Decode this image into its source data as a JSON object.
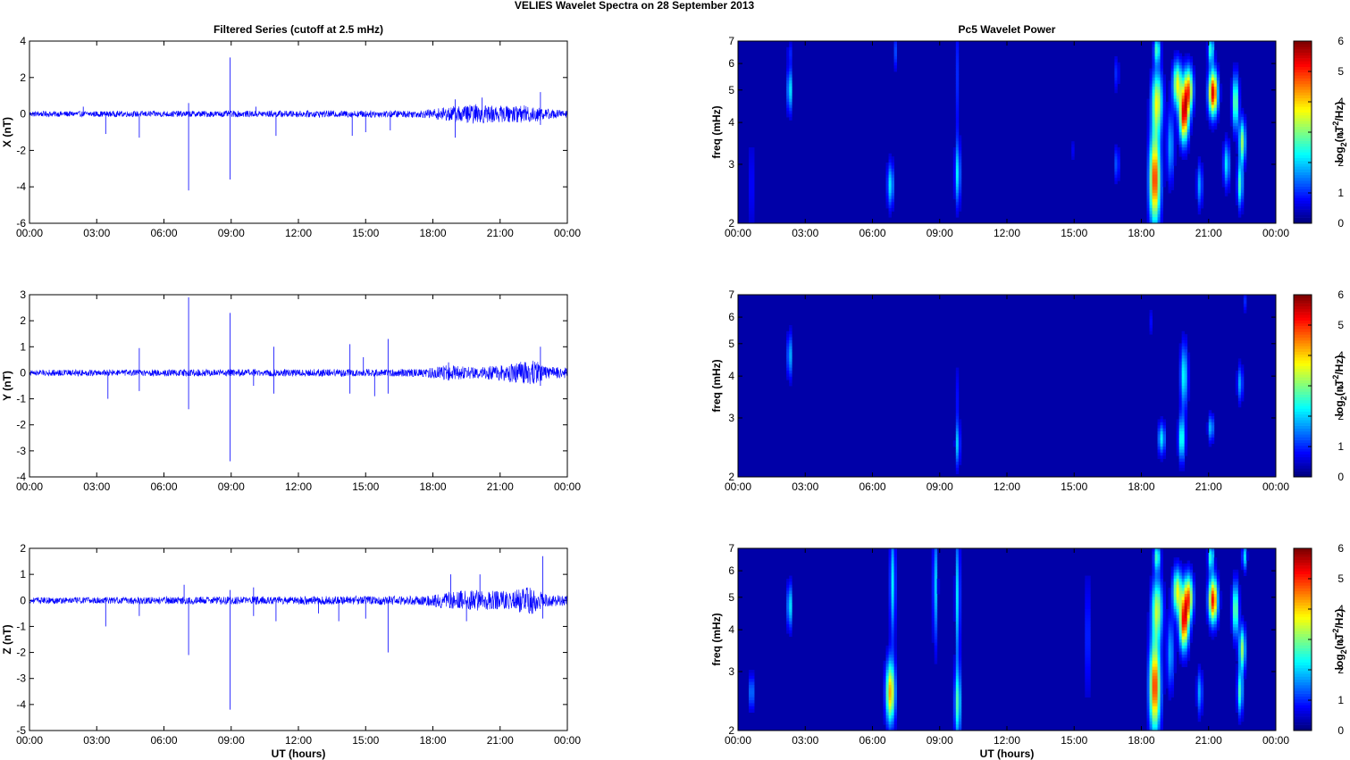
{
  "title": "VELIES Wavelet Spectra on 28 September 2013",
  "left_column_title": "Filtered Series (cutoff at 2.5 mHz)",
  "right_column_title": "Pc5 Wavelet Power",
  "x_tick_labels": [
    "00:00",
    "03:00",
    "06:00",
    "09:00",
    "12:00",
    "15:00",
    "18:00",
    "21:00",
    "00:00"
  ],
  "x_axis_label": "UT (hours)",
  "colors": {
    "series": "#0000ff",
    "axes": "#000000",
    "background": "#00008f"
  },
  "colorbar": {
    "label_base": "log",
    "label_sub": "2",
    "label_mid": "(nT",
    "label_sup": "2",
    "label_end": "/Hz)",
    "ticks": [
      0,
      1,
      2,
      3,
      4,
      5,
      6
    ],
    "colormap": "jet"
  },
  "chart_data": [
    {
      "type": "line",
      "title": "Filtered Series (cutoff at 2.5 mHz)",
      "ylabel": "X (nT)",
      "xlabel": "",
      "xlim": [
        0,
        24
      ],
      "ylim": [
        -6,
        4
      ],
      "yticks": [
        -6,
        -4,
        -2,
        0,
        2,
        4
      ],
      "noise": [
        [
          0,
          0.15
        ],
        [
          17.5,
          0.2
        ],
        [
          19,
          0.45
        ],
        [
          20,
          0.55
        ],
        [
          21,
          0.45
        ],
        [
          22.5,
          0.5
        ],
        [
          23,
          0.3
        ],
        [
          24,
          0.2
        ]
      ],
      "spikes": [
        [
          2.4,
          0.4
        ],
        [
          3.4,
          -1.1
        ],
        [
          4.9,
          -1.3
        ],
        [
          7.1,
          -4.2
        ],
        [
          7.1,
          0.6
        ],
        [
          8.95,
          3.1
        ],
        [
          8.95,
          -3.6
        ],
        [
          10.1,
          0.4
        ],
        [
          11.0,
          -1.2
        ],
        [
          14.4,
          -1.2
        ],
        [
          15.0,
          -1.0
        ],
        [
          16.1,
          -0.9
        ],
        [
          19.0,
          -1.3
        ],
        [
          19.0,
          0.8
        ],
        [
          20.2,
          0.9
        ],
        [
          22.8,
          1.2
        ],
        [
          22.8,
          -0.6
        ]
      ]
    },
    {
      "type": "line",
      "title": "",
      "ylabel": "Y (nT)",
      "xlabel": "",
      "xlim": [
        0,
        24
      ],
      "ylim": [
        -4,
        3
      ],
      "yticks": [
        -4,
        -3,
        -2,
        -1,
        0,
        1,
        2,
        3
      ],
      "noise": [
        [
          0,
          0.12
        ],
        [
          17.5,
          0.15
        ],
        [
          18.7,
          0.3
        ],
        [
          20,
          0.2
        ],
        [
          22.6,
          0.5
        ],
        [
          23,
          0.25
        ],
        [
          24,
          0.2
        ]
      ],
      "spikes": [
        [
          3.5,
          -1.0
        ],
        [
          4.9,
          0.95
        ],
        [
          4.9,
          -0.7
        ],
        [
          7.1,
          2.9
        ],
        [
          7.1,
          -1.4
        ],
        [
          8.95,
          2.3
        ],
        [
          8.95,
          -3.4
        ],
        [
          10.0,
          -0.5
        ],
        [
          10.9,
          1.0
        ],
        [
          10.9,
          -0.8
        ],
        [
          14.3,
          1.1
        ],
        [
          14.3,
          -0.8
        ],
        [
          14.9,
          0.6
        ],
        [
          15.4,
          -0.9
        ],
        [
          16.0,
          1.3
        ],
        [
          16.0,
          -0.8
        ],
        [
          18.7,
          0.4
        ],
        [
          22.8,
          1.0
        ],
        [
          22.8,
          -0.5
        ]
      ]
    },
    {
      "type": "line",
      "title": "",
      "ylabel": "Z (nT)",
      "xlabel": "UT (hours)",
      "xlim": [
        0,
        24
      ],
      "ylim": [
        -5,
        2
      ],
      "yticks": [
        -5,
        -4,
        -3,
        -2,
        -1,
        0,
        1,
        2
      ],
      "noise": [
        [
          0,
          0.12
        ],
        [
          17.5,
          0.18
        ],
        [
          18.7,
          0.35
        ],
        [
          20,
          0.4
        ],
        [
          21,
          0.35
        ],
        [
          22.6,
          0.55
        ],
        [
          23,
          0.25
        ],
        [
          24,
          0.2
        ]
      ],
      "spikes": [
        [
          3.4,
          -1.0
        ],
        [
          4.9,
          -0.6
        ],
        [
          6.9,
          0.6
        ],
        [
          7.1,
          -2.1
        ],
        [
          8.95,
          -4.2
        ],
        [
          8.95,
          0.4
        ],
        [
          10.0,
          0.5
        ],
        [
          10.0,
          -0.6
        ],
        [
          11.0,
          -0.8
        ],
        [
          12.9,
          -0.5
        ],
        [
          13.8,
          -0.8
        ],
        [
          15.0,
          -0.7
        ],
        [
          16.0,
          -2.0
        ],
        [
          18.8,
          1.0
        ],
        [
          19.5,
          -0.8
        ],
        [
          20.1,
          1.0
        ],
        [
          22.9,
          1.7
        ],
        [
          22.9,
          -0.7
        ]
      ]
    },
    {
      "type": "heatmap",
      "title": "Pc5 Wavelet Power",
      "ylabel": "freq (mHz)",
      "xlabel": "",
      "xlim": [
        0,
        24
      ],
      "ylim": [
        2,
        7
      ],
      "yscale": "log",
      "yticks": [
        2,
        3,
        4,
        5,
        6,
        7
      ],
      "clim": [
        0,
        6
      ],
      "blobs": [
        [
          0.6,
          2.6,
          0.05,
          0.22,
          0.7
        ],
        [
          2.3,
          5.0,
          0.05,
          0.1,
          2.2
        ],
        [
          2.3,
          6.5,
          0.04,
          0.05,
          0.8
        ],
        [
          6.8,
          2.6,
          0.07,
          0.1,
          2.0
        ],
        [
          7.0,
          6.5,
          0.04,
          0.08,
          1.0
        ],
        [
          9.8,
          2.8,
          0.06,
          0.14,
          2.0
        ],
        [
          9.8,
          5.5,
          0.04,
          0.3,
          0.8
        ],
        [
          14.9,
          3.3,
          0.04,
          0.05,
          0.6
        ],
        [
          16.9,
          3.0,
          0.05,
          0.08,
          1.2
        ],
        [
          16.9,
          5.6,
          0.04,
          0.08,
          1.0
        ],
        [
          18.6,
          2.7,
          0.12,
          0.2,
          5.0
        ],
        [
          18.7,
          4.6,
          0.12,
          0.14,
          3.5
        ],
        [
          18.7,
          6.6,
          0.07,
          0.06,
          2.5
        ],
        [
          19.3,
          3.4,
          0.08,
          0.16,
          1.6
        ],
        [
          19.6,
          5.2,
          0.1,
          0.1,
          3.5
        ],
        [
          19.9,
          4.2,
          0.1,
          0.12,
          5.2
        ],
        [
          20.1,
          5.0,
          0.1,
          0.1,
          4.2
        ],
        [
          20.6,
          2.6,
          0.06,
          0.1,
          1.6
        ],
        [
          21.2,
          4.9,
          0.1,
          0.1,
          5.5
        ],
        [
          21.1,
          6.6,
          0.06,
          0.06,
          2.5
        ],
        [
          21.8,
          3.0,
          0.07,
          0.1,
          2.0
        ],
        [
          22.2,
          4.6,
          0.07,
          0.12,
          3.0
        ],
        [
          22.4,
          2.6,
          0.06,
          0.1,
          2.5
        ],
        [
          22.5,
          3.5,
          0.07,
          0.1,
          3.0
        ]
      ]
    },
    {
      "type": "heatmap",
      "title": "",
      "ylabel": "freq (mHz)",
      "xlabel": "",
      "xlim": [
        0,
        24
      ],
      "ylim": [
        2,
        7
      ],
      "yscale": "log",
      "yticks": [
        2,
        3,
        4,
        5,
        6,
        7
      ],
      "clim": [
        0,
        6
      ],
      "blobs": [
        [
          2.3,
          4.6,
          0.05,
          0.1,
          1.8
        ],
        [
          9.8,
          2.5,
          0.05,
          0.1,
          1.8
        ],
        [
          9.8,
          3.5,
          0.04,
          0.14,
          0.6
        ],
        [
          18.9,
          2.6,
          0.08,
          0.07,
          2.0
        ],
        [
          18.4,
          5.8,
          0.04,
          0.06,
          0.6
        ],
        [
          19.8,
          2.6,
          0.07,
          0.1,
          2.5
        ],
        [
          19.9,
          4.0,
          0.08,
          0.14,
          2.2
        ],
        [
          21.1,
          2.8,
          0.06,
          0.06,
          1.8
        ],
        [
          22.4,
          3.8,
          0.06,
          0.08,
          1.6
        ],
        [
          22.6,
          6.7,
          0.04,
          0.05,
          0.8
        ]
      ]
    },
    {
      "type": "heatmap",
      "title": "",
      "ylabel": "freq (mHz)",
      "xlabel": "UT (hours)",
      "xlim": [
        0,
        24
      ],
      "ylim": [
        2,
        7
      ],
      "yscale": "log",
      "yticks": [
        2,
        3,
        4,
        5,
        6,
        7
      ],
      "clim": [
        0,
        6
      ],
      "blobs": [
        [
          0.6,
          2.6,
          0.05,
          0.08,
          1.6
        ],
        [
          2.3,
          4.7,
          0.05,
          0.1,
          2.2
        ],
        [
          6.8,
          2.6,
          0.1,
          0.14,
          4.2
        ],
        [
          6.9,
          5.5,
          0.06,
          0.24,
          2.0
        ],
        [
          8.8,
          5.4,
          0.05,
          0.26,
          1.8
        ],
        [
          9.8,
          2.4,
          0.07,
          0.16,
          2.5
        ],
        [
          9.8,
          5.0,
          0.05,
          0.3,
          2.0
        ],
        [
          15.6,
          3.8,
          0.04,
          0.28,
          1.2
        ],
        [
          18.6,
          2.7,
          0.12,
          0.2,
          5.0
        ],
        [
          18.7,
          4.6,
          0.12,
          0.14,
          3.2
        ],
        [
          18.7,
          6.6,
          0.07,
          0.06,
          2.5
        ],
        [
          19.3,
          3.4,
          0.08,
          0.16,
          1.6
        ],
        [
          19.6,
          5.2,
          0.1,
          0.1,
          3.5
        ],
        [
          19.9,
          4.2,
          0.1,
          0.12,
          5.0
        ],
        [
          20.1,
          5.0,
          0.1,
          0.1,
          4.2
        ],
        [
          20.6,
          2.6,
          0.06,
          0.1,
          1.6
        ],
        [
          21.2,
          4.9,
          0.1,
          0.1,
          5.2
        ],
        [
          21.1,
          6.6,
          0.06,
          0.06,
          2.5
        ],
        [
          22.2,
          4.6,
          0.07,
          0.12,
          3.0
        ],
        [
          22.4,
          2.6,
          0.06,
          0.1,
          2.5
        ],
        [
          22.5,
          3.5,
          0.07,
          0.1,
          3.0
        ],
        [
          22.6,
          6.6,
          0.05,
          0.06,
          2.0
        ]
      ]
    }
  ]
}
